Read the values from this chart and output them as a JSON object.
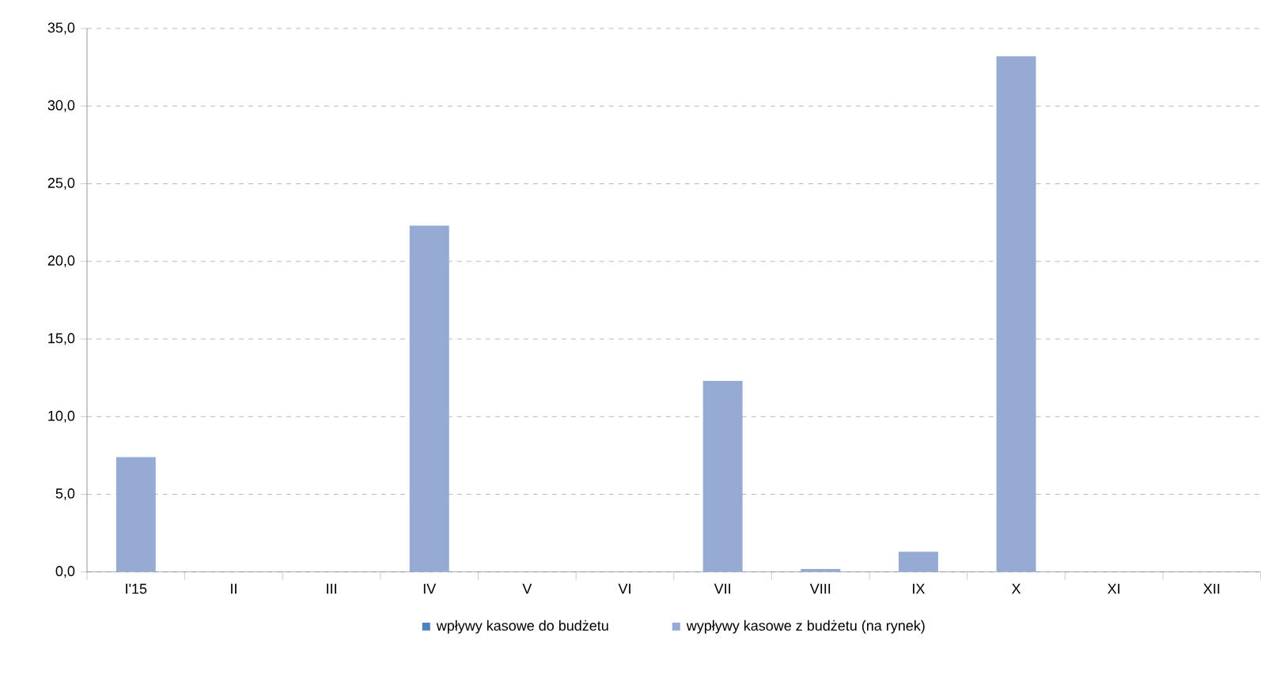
{
  "chart_data": {
    "type": "bar",
    "categories": [
      "I'15",
      "II",
      "III",
      "IV",
      "V",
      "VI",
      "VII",
      "VIII",
      "IX",
      "X",
      "XI",
      "XII"
    ],
    "series": [
      {
        "name": "wpływy kasowe do budżetu",
        "color": "#4f81bd",
        "values": [
          0,
          0,
          0,
          0,
          0,
          0,
          0,
          0,
          0,
          0,
          0,
          0
        ]
      },
      {
        "name": "wypływy kasowe z budżetu (na rynek)",
        "color": "#95abd4",
        "values": [
          7.4,
          0,
          0,
          22.3,
          0,
          0,
          12.3,
          0.2,
          1.3,
          33.2,
          0,
          0
        ]
      }
    ],
    "ylim": [
      0,
      35
    ],
    "yticks": [
      {
        "value": 0,
        "label": "0,0"
      },
      {
        "value": 5,
        "label": "5,0"
      },
      {
        "value": 10,
        "label": "10,0"
      },
      {
        "value": 15,
        "label": "15,0"
      },
      {
        "value": 20,
        "label": "20,0"
      },
      {
        "value": 25,
        "label": "25,0"
      },
      {
        "value": 30,
        "label": "30,0"
      },
      {
        "value": 35,
        "label": "35,0"
      }
    ],
    "grid": "y",
    "legend": "bottom"
  }
}
